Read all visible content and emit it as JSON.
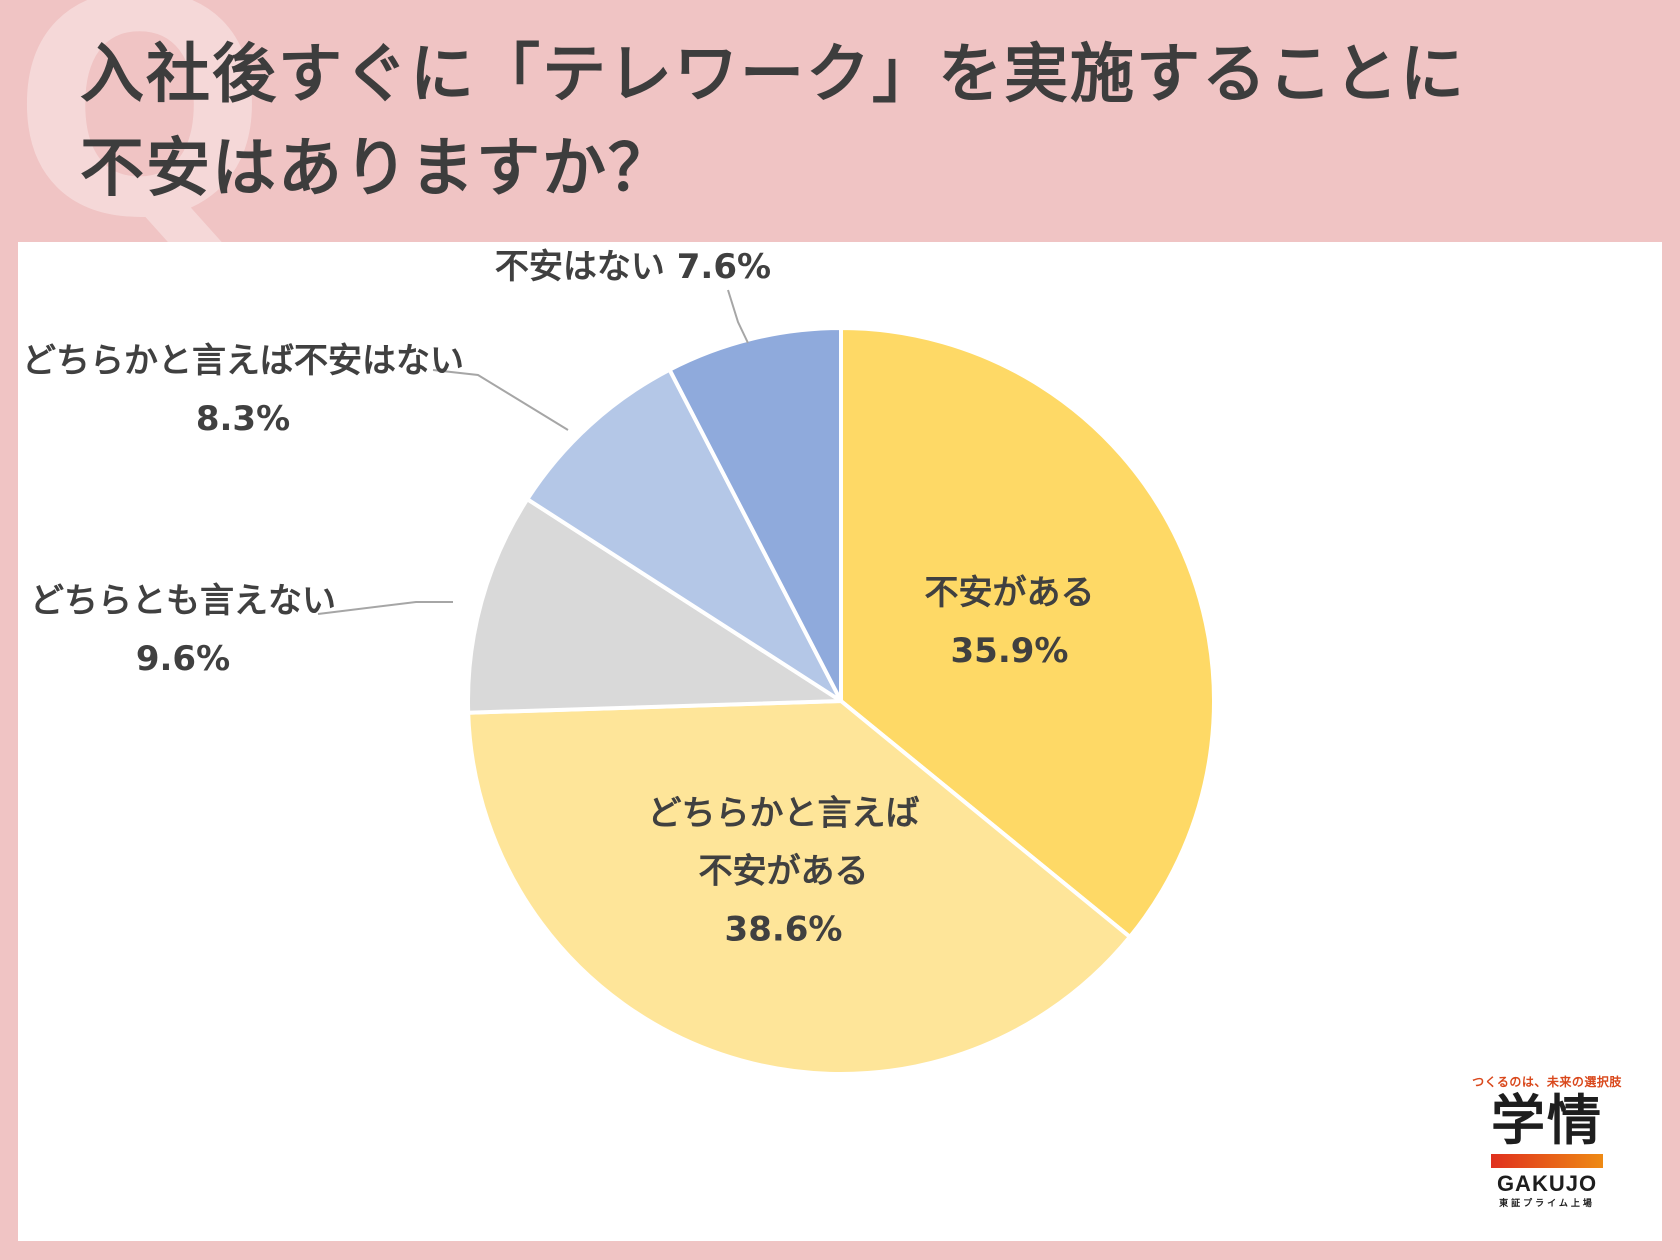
{
  "page": {
    "background_color": "#f0c4c4",
    "panel_color": "#ffffff",
    "decoration_letter": "Q"
  },
  "title": {
    "line1": "入社後すぐに「テレワーク」を実施することに",
    "line2": "不安はありますか？"
  },
  "chart_data": {
    "type": "pie",
    "start_angle_deg": 0,
    "direction": "clockwise",
    "slices": [
      {
        "label_lines": [
          "不安がある",
          "35.9%"
        ],
        "value": 35.9,
        "color": "#fed966",
        "label_placement": "inside"
      },
      {
        "label_lines": [
          "どちらかと言えば",
          "不安がある",
          "38.6%"
        ],
        "value": 38.6,
        "color": "#fee599",
        "label_placement": "inside"
      },
      {
        "label_lines": [
          "どちらとも言えない",
          "9.6%"
        ],
        "value": 9.6,
        "color": "#d9d9d9",
        "label_placement": "outside"
      },
      {
        "label_lines": [
          "どちらかと言えば不安はない",
          "8.3%"
        ],
        "value": 8.3,
        "color": "#b4c7e7",
        "label_placement": "outside"
      },
      {
        "label_lines": [
          "不安はない 7.6%"
        ],
        "value": 7.6,
        "color": "#8faadc",
        "label_placement": "outside"
      }
    ],
    "legend": "none"
  },
  "logo": {
    "tagline": "つくるのは、未来の選択肢",
    "mark": "学情",
    "brand": "GAKUJO",
    "sub": "東証プライム上場"
  }
}
